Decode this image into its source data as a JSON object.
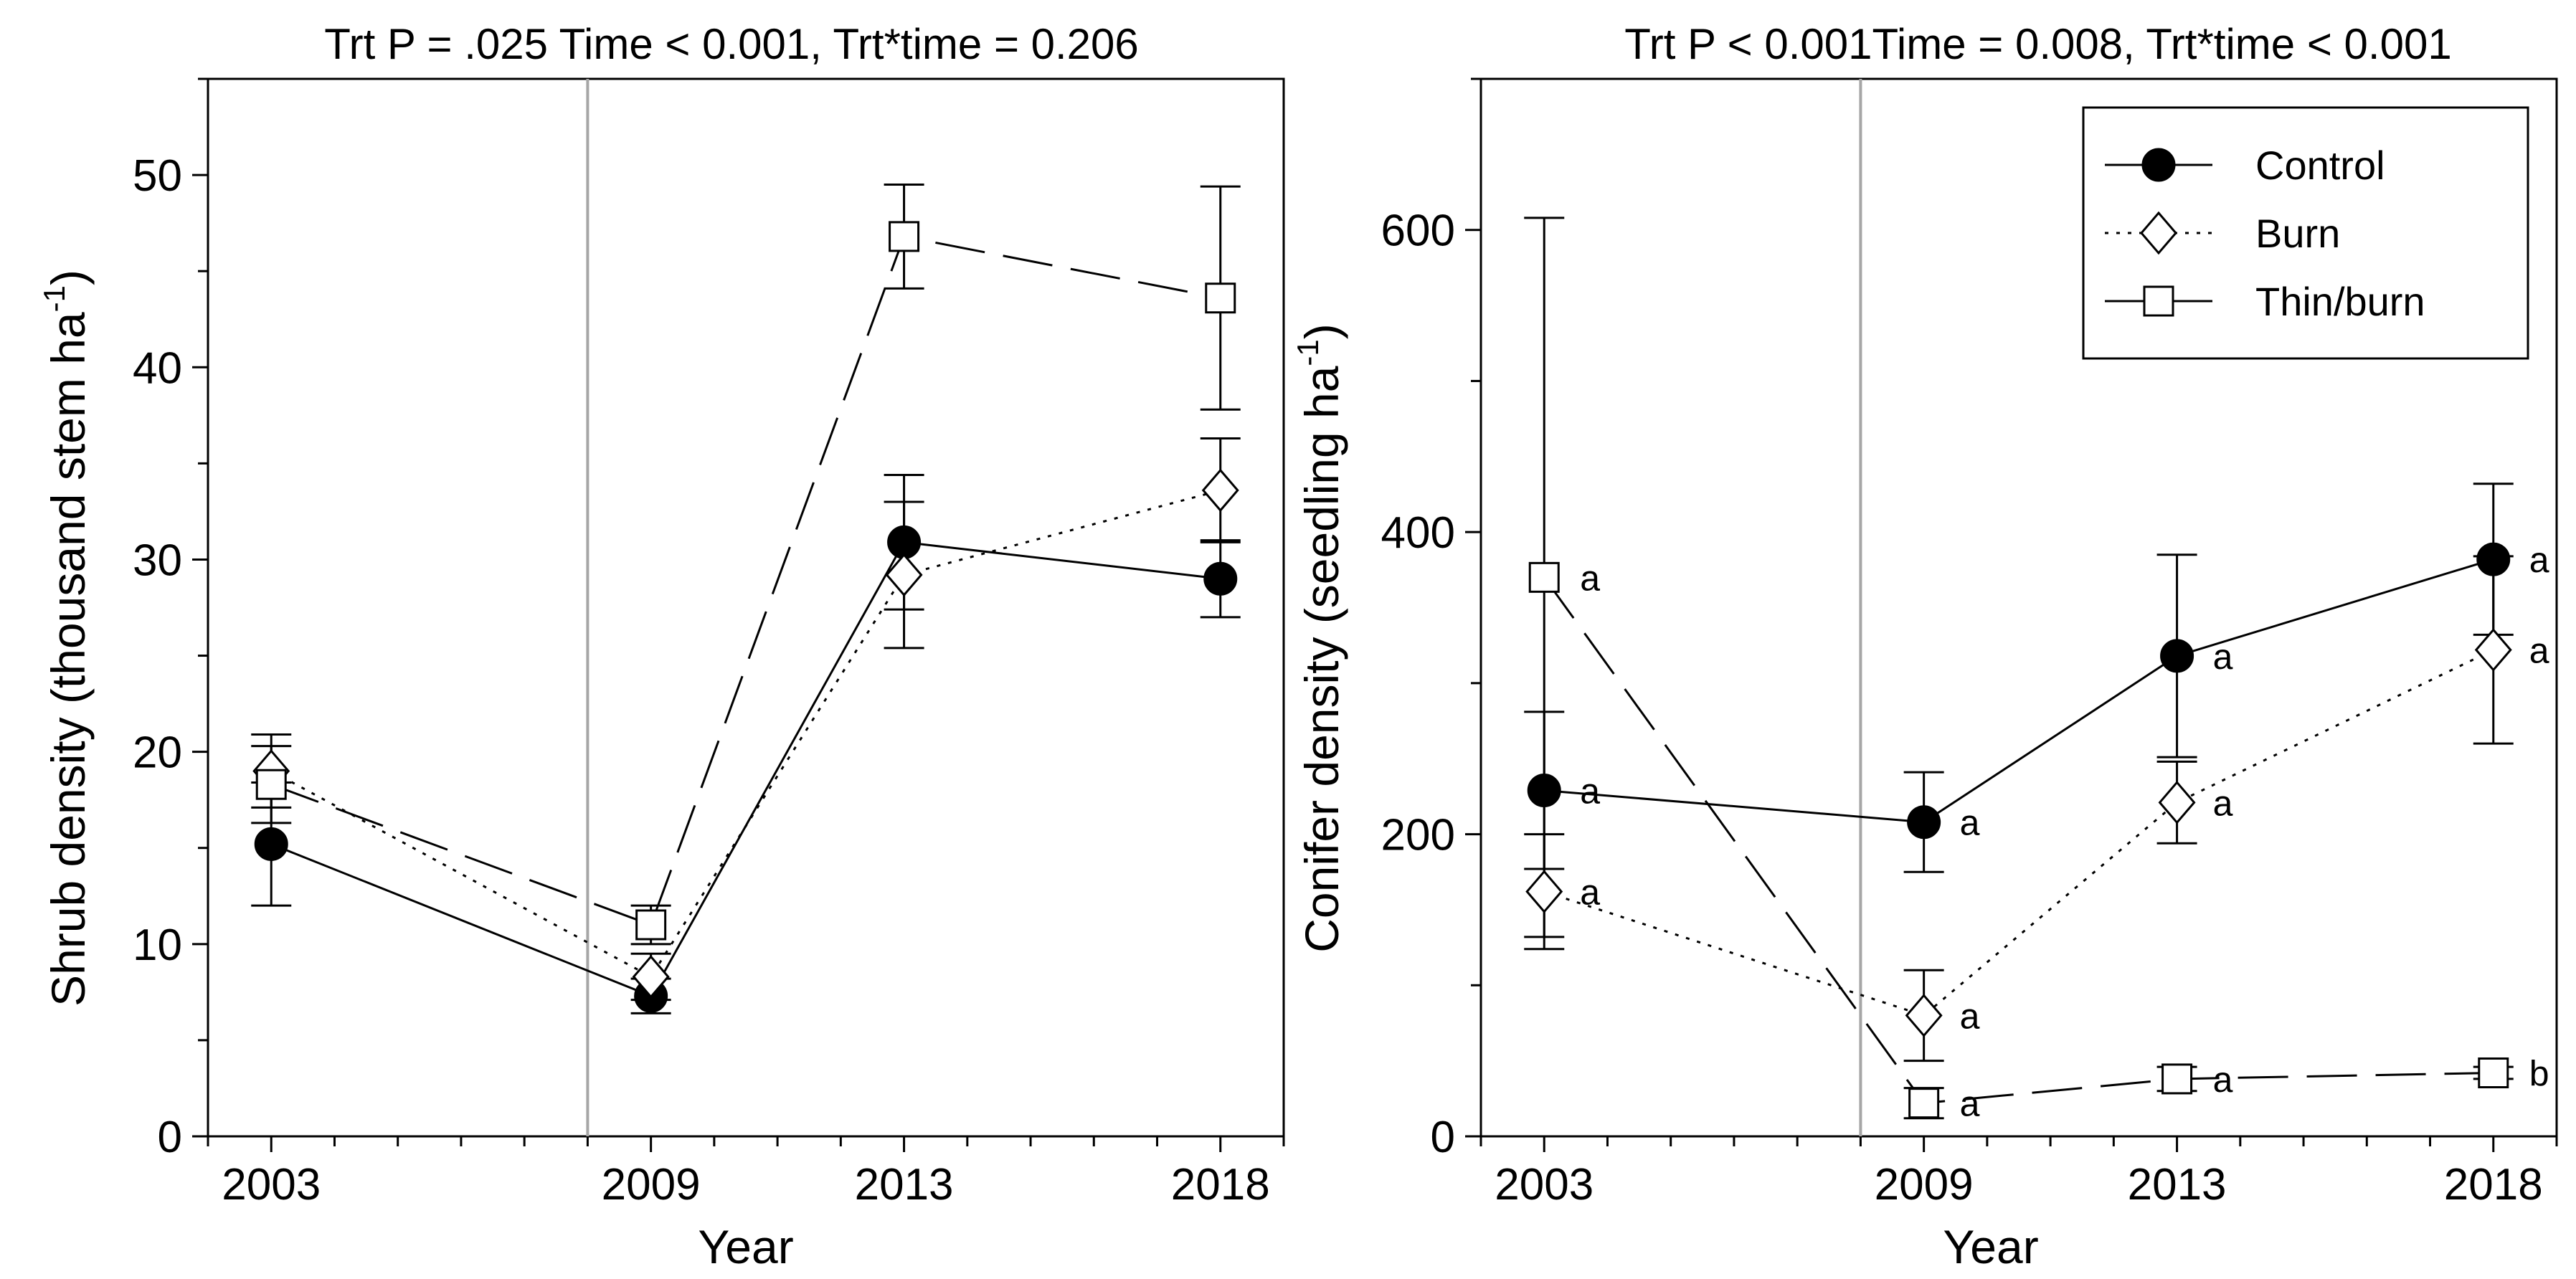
{
  "chart_data": [
    {
      "type": "line",
      "title": "Trt P = .025 Time < 0.001, Trt*time = 0.206",
      "xlabel": "Year",
      "ylabel": "Shrub density (thousand stem ha",
      "ylabel_superscript": "-1",
      "ylabel_close": ")",
      "xlim": [
        2002,
        2019
      ],
      "ylim": [
        0,
        55
      ],
      "x_ticks": [
        2003,
        2009,
        2013,
        2018
      ],
      "x_tick_labels": [
        "2003",
        "2009",
        "2013",
        "2018"
      ],
      "y_ticks": [
        0,
        10,
        20,
        30,
        40,
        50
      ],
      "y_tick_labels": [
        "0",
        "10",
        "20",
        "30",
        "40",
        "50"
      ],
      "reference_line_x": 2008,
      "series": [
        {
          "name": "Control",
          "marker": "circle",
          "line": "solid",
          "x": [
            2003,
            2009,
            2013,
            2018
          ],
          "values": [
            15.2,
            7.3,
            30.9,
            29.0
          ],
          "err": [
            3.2,
            0.9,
            3.5,
            2.0
          ]
        },
        {
          "name": "Burn",
          "marker": "diamond",
          "line": "dotted",
          "x": [
            2003,
            2009,
            2013,
            2018
          ],
          "values": [
            19.0,
            8.3,
            29.2,
            33.6
          ],
          "err": [
            1.9,
            1.2,
            3.8,
            2.7
          ]
        },
        {
          "name": "Thin/burn",
          "marker": "square",
          "line": "dashed",
          "x": [
            2003,
            2009,
            2013,
            2018
          ],
          "values": [
            18.3,
            11.0,
            46.8,
            43.6
          ],
          "err": [
            2.0,
            1.0,
            2.7,
            5.8
          ]
        }
      ]
    },
    {
      "type": "line",
      "title": "Trt P < 0.001Time = 0.008, Trt*time < 0.001",
      "xlabel": "Year",
      "ylabel": "Conifer density (seedling ha",
      "ylabel_superscript": "-1",
      "ylabel_close": ")",
      "xlim": [
        2002,
        2019
      ],
      "ylim": [
        0,
        700
      ],
      "x_ticks": [
        2003,
        2009,
        2013,
        2018
      ],
      "x_tick_labels": [
        "2003",
        "2009",
        "2013",
        "2018"
      ],
      "y_ticks": [
        0,
        200,
        400,
        600
      ],
      "y_tick_labels": [
        "0",
        "200",
        "400",
        "600"
      ],
      "reference_line_x": 2008,
      "legend": {
        "position": "top-right",
        "entries": [
          "Control",
          "Burn",
          "Thin/burn"
        ]
      },
      "series": [
        {
          "name": "Control",
          "marker": "circle",
          "line": "solid",
          "x": [
            2003,
            2009,
            2013,
            2018
          ],
          "values": [
            229,
            208,
            318,
            382
          ],
          "err": [
            52,
            33,
            67,
            50
          ],
          "letters": [
            "a",
            "a",
            "a",
            "a"
          ]
        },
        {
          "name": "Burn",
          "marker": "diamond",
          "line": "dotted",
          "x": [
            2003,
            2009,
            2013,
            2018
          ],
          "values": [
            162,
            80,
            221,
            322
          ],
          "err": [
            38,
            30,
            27,
            62
          ],
          "letters": [
            "a",
            "a",
            "a",
            "a"
          ]
        },
        {
          "name": "Thin/burn",
          "marker": "square",
          "line": "dashed",
          "x": [
            2003,
            2009,
            2013,
            2018
          ],
          "values": [
            370,
            22,
            38,
            42
          ],
          "err": [
            238,
            10,
            8,
            4
          ],
          "letters": [
            "a",
            "a",
            "a",
            "b"
          ]
        }
      ]
    }
  ]
}
